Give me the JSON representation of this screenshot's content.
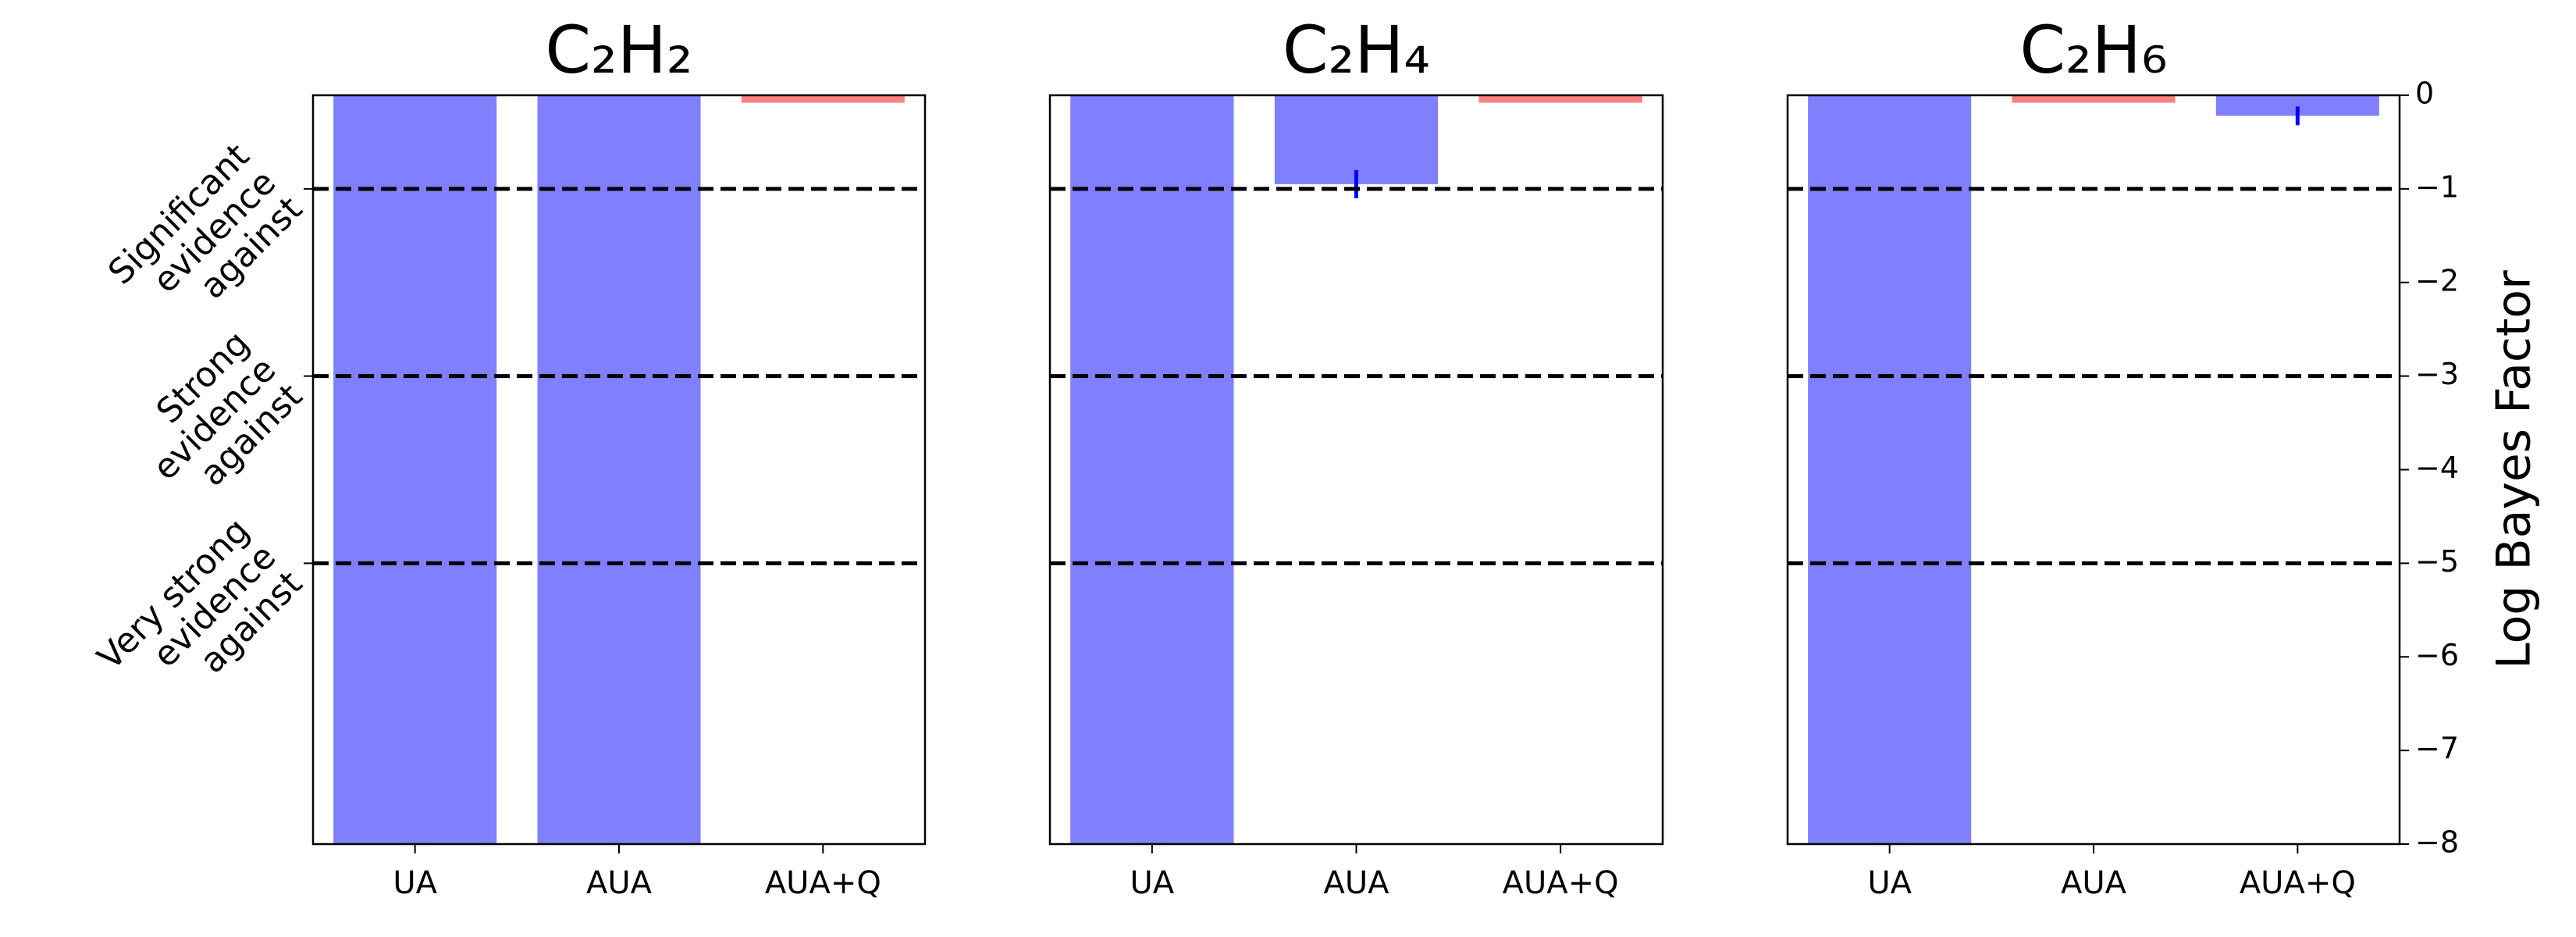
{
  "chart_data": [
    {
      "type": "bar",
      "title": "C₂H₂",
      "categories": [
        "UA",
        "AUA",
        "AUA+Q"
      ],
      "values": [
        -8,
        -8,
        -0.08
      ],
      "colors": [
        "#8080ff",
        "#8080ff",
        "#ff8080"
      ],
      "errors": [
        null,
        null,
        null
      ],
      "error_color": "#0000ff",
      "ylim": [
        -8,
        0
      ],
      "hlines": [
        -1,
        -3,
        -5
      ],
      "hline_labels": [
        [
          "Significant",
          "evidence",
          "against"
        ],
        [
          "Strong",
          "evidence",
          "against"
        ],
        [
          "Very strong",
          "evidence",
          "against"
        ]
      ]
    },
    {
      "type": "bar",
      "title": "C₂H₄",
      "categories": [
        "UA",
        "AUA",
        "AUA+Q"
      ],
      "values": [
        -8,
        -0.95,
        -0.08
      ],
      "colors": [
        "#8080ff",
        "#8080ff",
        "#ff8080"
      ],
      "errors": [
        null,
        0.15,
        null
      ],
      "error_color": "#0000ff",
      "ylim": [
        -8,
        0
      ],
      "hlines": [
        -1,
        -3,
        -5
      ]
    },
    {
      "type": "bar",
      "title": "C₂H₆",
      "categories": [
        "UA",
        "AUA",
        "AUA+Q"
      ],
      "values": [
        -8,
        -0.08,
        -0.22
      ],
      "colors": [
        "#8080ff",
        "#ff8080",
        "#8080ff"
      ],
      "errors": [
        null,
        null,
        0.1
      ],
      "error_color": "#0000ff",
      "ylim": [
        -8,
        0
      ],
      "hlines": [
        -1,
        -3,
        -5
      ],
      "ylabel": "Log Bayes Factor",
      "yticks": [
        0,
        {
          "value": -1,
          "label": "−1"
        },
        {
          "value": -2,
          "label": "−2"
        },
        {
          "value": -3,
          "label": "−3"
        },
        {
          "value": -4,
          "label": "−4"
        },
        {
          "value": -5,
          "label": "−5"
        },
        {
          "value": -6,
          "label": "−6"
        },
        {
          "value": -7,
          "label": "−7"
        },
        {
          "value": -8,
          "label": "−8"
        }
      ]
    }
  ]
}
